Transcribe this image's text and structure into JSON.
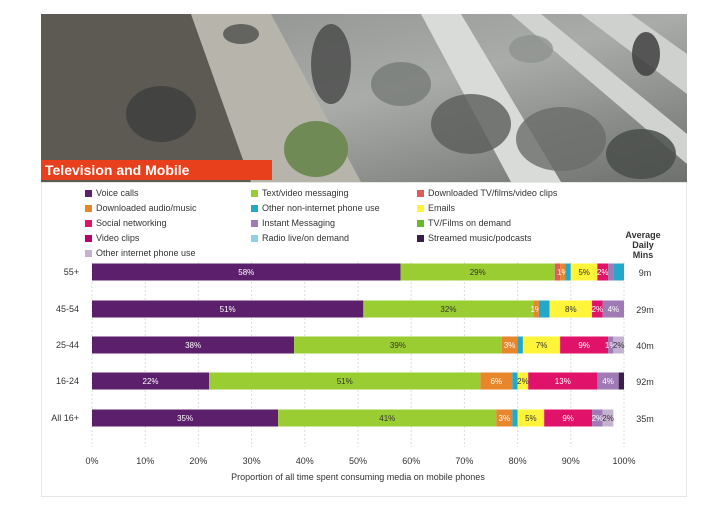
{
  "banner": {
    "title": "Television and Mobile"
  },
  "colors": {
    "banner": "#e8401c",
    "voice": "#5b1f6b",
    "text": "#9acd32",
    "dl_tv": "#e05a5a",
    "dl_audio": "#e8862b",
    "other_phone": "#24a8c9",
    "emails": "#fff43a",
    "social": "#e0126a",
    "im": "#a07ab5",
    "tvfilms": "#66b82e",
    "video": "#b8006e",
    "radio": "#8fd0e6",
    "streamed": "#3a1f48",
    "other_internet": "#c5b2d0"
  },
  "avg_header": [
    "Average",
    "Daily",
    "Mins"
  ],
  "chart_data": {
    "type": "bar",
    "orientation": "horizontal",
    "stacked": true,
    "xlabel": "Proportion of all time spent consuming media on mobile phones",
    "xlim": [
      0,
      100
    ],
    "xticks": [
      "0%",
      "10%",
      "20%",
      "30%",
      "40%",
      "50%",
      "60%",
      "70%",
      "80%",
      "90%",
      "100%"
    ],
    "grid": true,
    "legend_position": "top",
    "categories": [
      "55+",
      "45-54",
      "25-44",
      "16-24",
      "All 16+"
    ],
    "average_daily_mins": [
      "9m",
      "29m",
      "40m",
      "92m",
      "35m"
    ],
    "legend": [
      {
        "name": "Voice calls",
        "color_key": "voice"
      },
      {
        "name": "Text/video messaging",
        "color_key": "text"
      },
      {
        "name": "Downloaded TV/films/video clips",
        "color_key": "dl_tv"
      },
      {
        "name": "Downloaded audio/music",
        "color_key": "dl_audio"
      },
      {
        "name": "Other non-internet phone use",
        "color_key": "other_phone"
      },
      {
        "name": "Emails",
        "color_key": "emails"
      },
      {
        "name": "Social networking",
        "color_key": "social"
      },
      {
        "name": "Instant Messaging",
        "color_key": "im"
      },
      {
        "name": "TV/Films on demand",
        "color_key": "tvfilms"
      },
      {
        "name": "Video clips",
        "color_key": "video"
      },
      {
        "name": "Radio live/on demand",
        "color_key": "radio"
      },
      {
        "name": "Streamed music/podcasts",
        "color_key": "streamed"
      },
      {
        "name": "Other internet phone use",
        "color_key": "other_internet"
      }
    ],
    "rows": [
      {
        "category": "55+",
        "segments": [
          {
            "key": "voice",
            "value": 58,
            "label": "58%"
          },
          {
            "key": "text",
            "value": 29,
            "label": "29%"
          },
          {
            "key": "dl_tv",
            "value": 1,
            "label": ""
          },
          {
            "key": "dl_audio",
            "value": 1,
            "label": "1%"
          },
          {
            "key": "other_phone",
            "value": 1,
            "label": ""
          },
          {
            "key": "emails",
            "value": 5,
            "label": "5%"
          },
          {
            "key": "social",
            "value": 2,
            "label": "2%"
          },
          {
            "key": "im",
            "value": 1,
            "label": ""
          },
          {
            "key": "other_phone",
            "value": 2,
            "label": ""
          }
        ]
      },
      {
        "category": "45-54",
        "segments": [
          {
            "key": "voice",
            "value": 51,
            "label": "51%"
          },
          {
            "key": "text",
            "value": 32,
            "label": "32%"
          },
          {
            "key": "dl_audio",
            "value": 1,
            "label": "1%"
          },
          {
            "key": "other_phone",
            "value": 2,
            "label": ""
          },
          {
            "key": "emails",
            "value": 8,
            "label": "8%"
          },
          {
            "key": "social",
            "value": 2,
            "label": "2%"
          },
          {
            "key": "im",
            "value": 4,
            "label": "4%"
          }
        ]
      },
      {
        "category": "25-44",
        "segments": [
          {
            "key": "voice",
            "value": 38,
            "label": "38%"
          },
          {
            "key": "text",
            "value": 39,
            "label": "39%"
          },
          {
            "key": "dl_audio",
            "value": 3,
            "label": "3%"
          },
          {
            "key": "other_phone",
            "value": 1,
            "label": ""
          },
          {
            "key": "emails",
            "value": 7,
            "label": "7%"
          },
          {
            "key": "social",
            "value": 9,
            "label": "9%"
          },
          {
            "key": "im",
            "value": 1,
            "label": "1%"
          },
          {
            "key": "other_internet",
            "value": 2,
            "label": "2%"
          }
        ]
      },
      {
        "category": "16-24",
        "segments": [
          {
            "key": "voice",
            "value": 22,
            "label": "22%"
          },
          {
            "key": "text",
            "value": 51,
            "label": "51%"
          },
          {
            "key": "dl_audio",
            "value": 6,
            "label": "6%"
          },
          {
            "key": "other_phone",
            "value": 1,
            "label": ""
          },
          {
            "key": "emails",
            "value": 2,
            "label": "2%"
          },
          {
            "key": "social",
            "value": 13,
            "label": "13%"
          },
          {
            "key": "im",
            "value": 4,
            "label": "4%"
          },
          {
            "key": "streamed",
            "value": 1,
            "label": ""
          }
        ]
      },
      {
        "category": "All 16+",
        "segments": [
          {
            "key": "voice",
            "value": 35,
            "label": "35%"
          },
          {
            "key": "text",
            "value": 41,
            "label": "41%"
          },
          {
            "key": "dl_audio",
            "value": 3,
            "label": "3%"
          },
          {
            "key": "other_phone",
            "value": 1,
            "label": ""
          },
          {
            "key": "emails",
            "value": 5,
            "label": "5%"
          },
          {
            "key": "social",
            "value": 9,
            "label": "9%"
          },
          {
            "key": "im",
            "value": 2,
            "label": "2%"
          },
          {
            "key": "other_internet",
            "value": 2,
            "label": "2%"
          }
        ]
      }
    ]
  }
}
